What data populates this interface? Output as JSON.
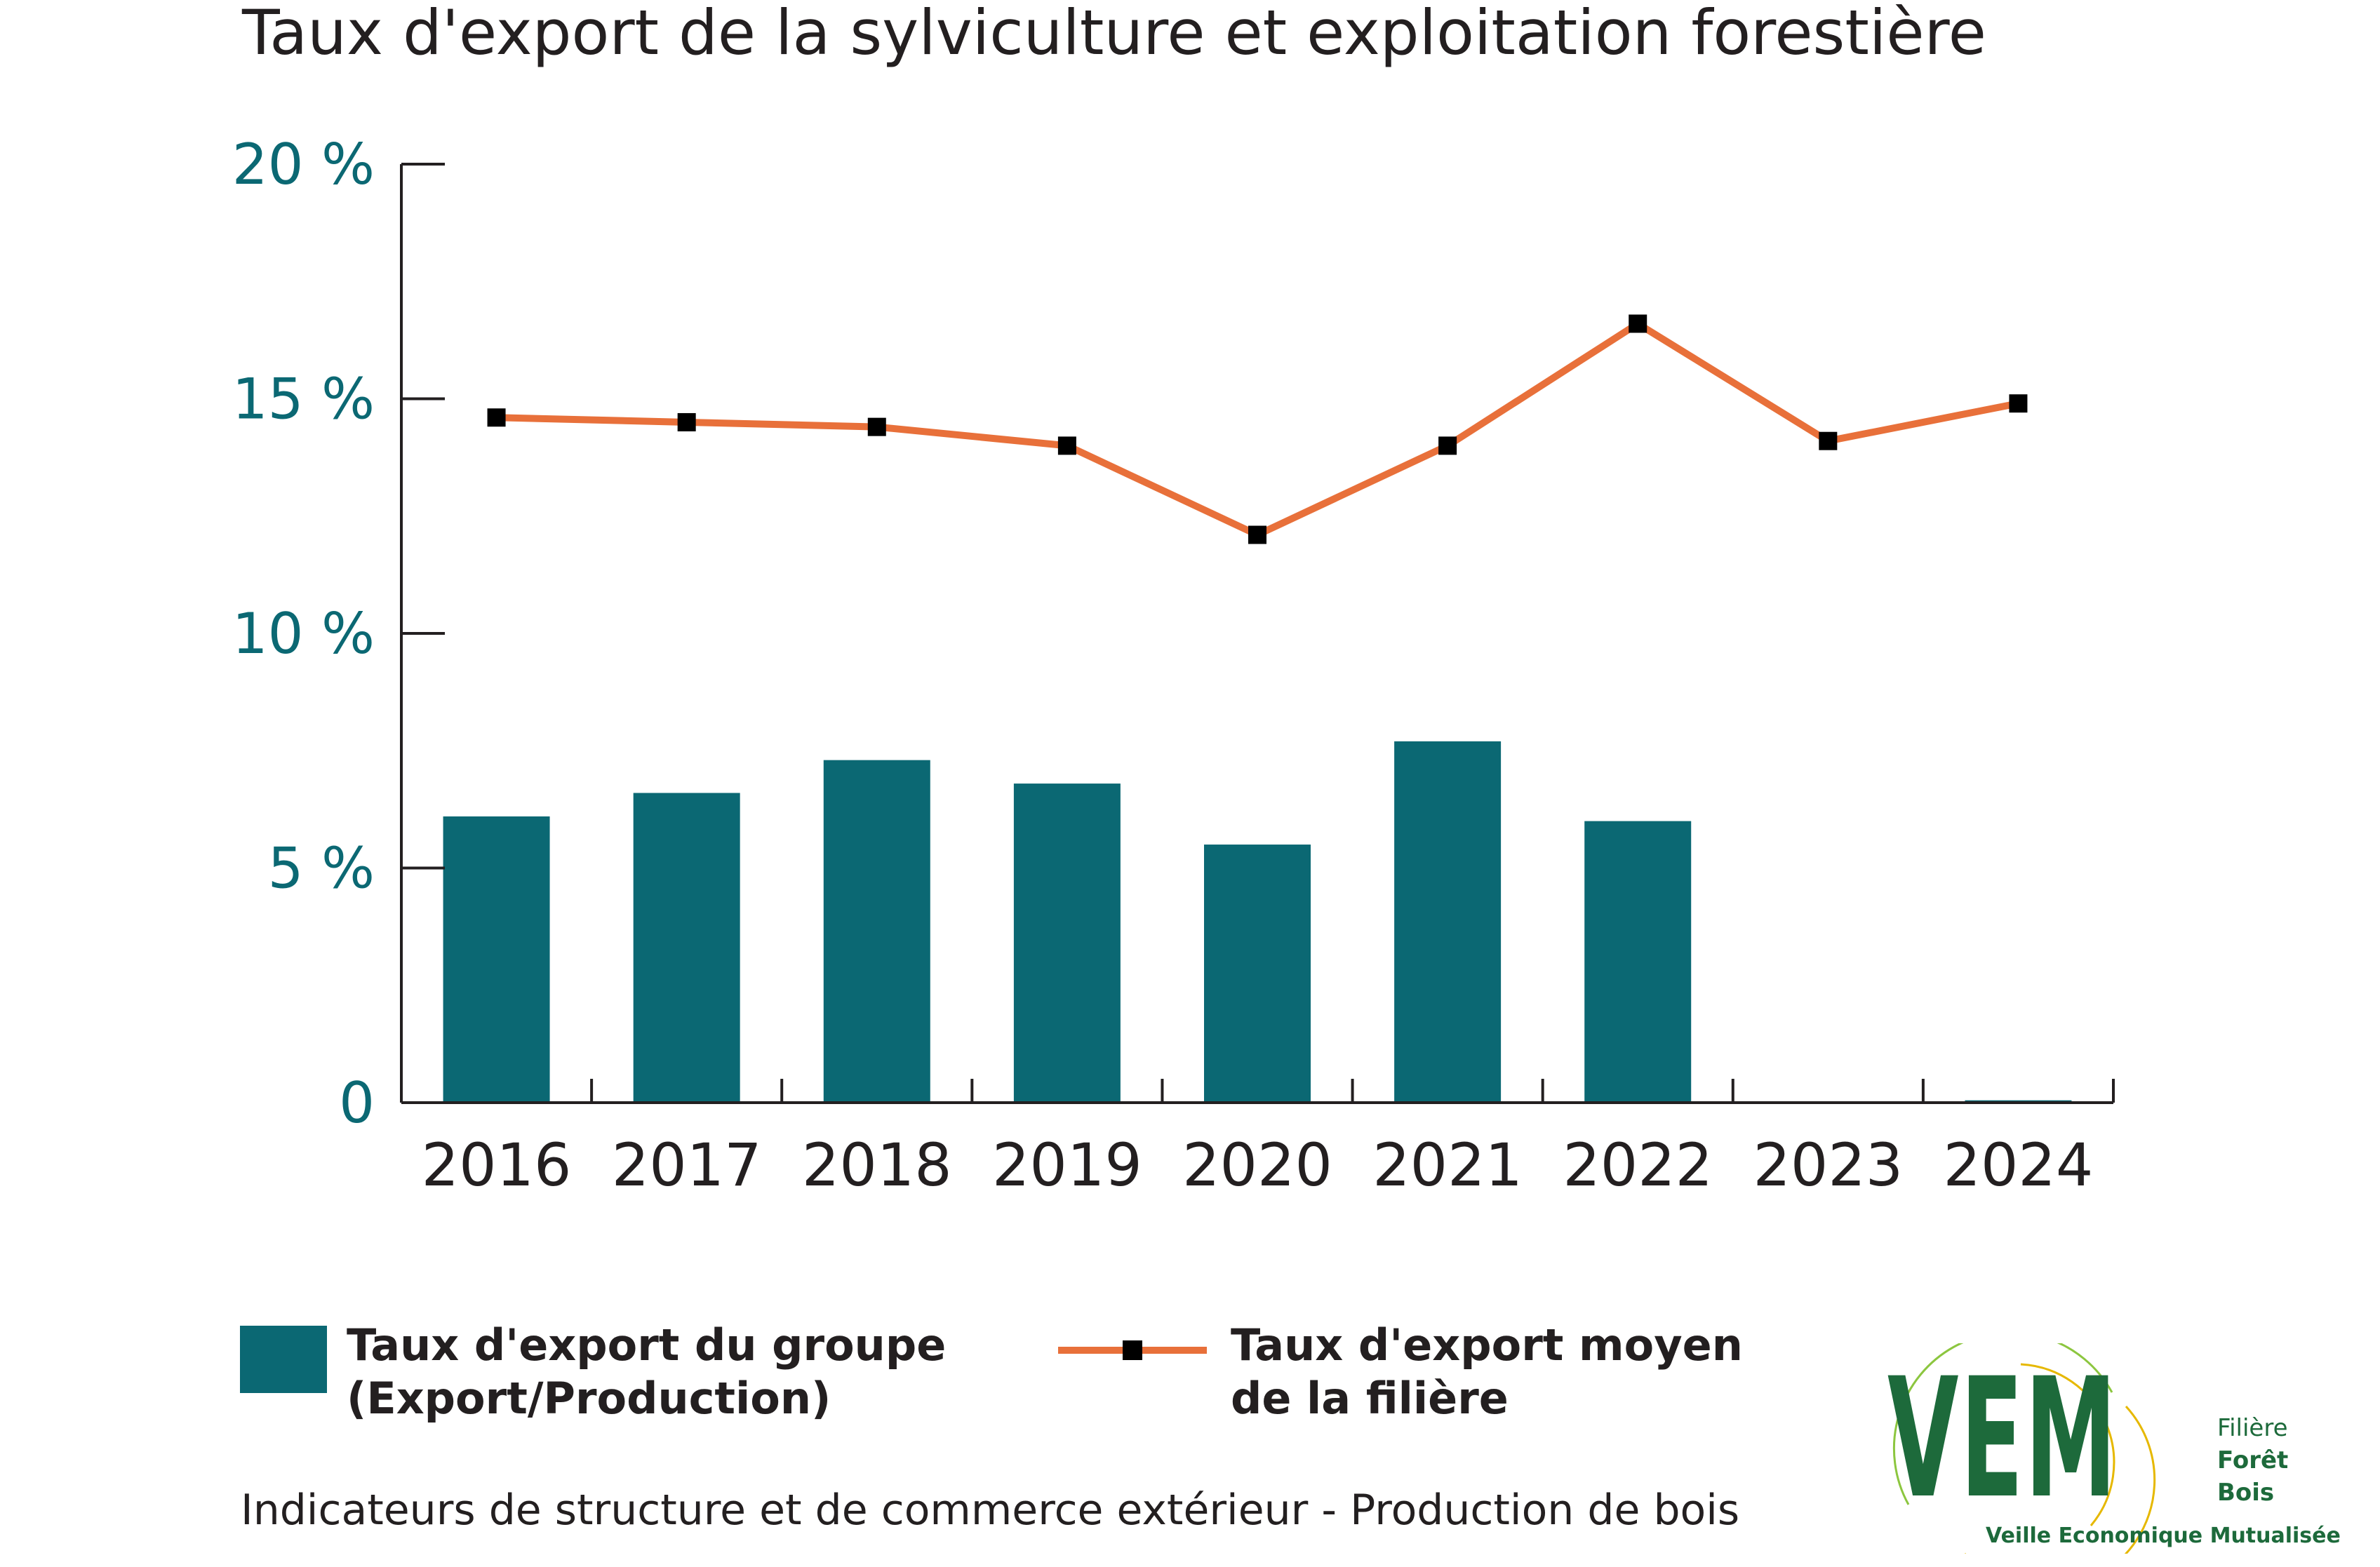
{
  "title": "Taux d'export de la sylviculture et exploitation forestière",
  "footer": "Indicateurs de structure et de commerce extérieur - Production de bois",
  "colors": {
    "bar": "#0b6873",
    "line": "#e8703a",
    "marker": "#000000",
    "axis": "#231f20",
    "ytick": "#0b6873",
    "logo": "#1d6a3b"
  },
  "legend": {
    "bar_label": "Taux d'export du groupe\n(Export/Production)",
    "line_label": "Taux d'export moyen\nde la filière"
  },
  "logo": {
    "letters": "VEM",
    "side_line1": "Filière",
    "side_line2": "Forêt",
    "side_line3": "Bois",
    "subtitle": "Veille Economique Mutualisée"
  },
  "chart_data": {
    "type": "bar",
    "categories": [
      "2016",
      "2017",
      "2018",
      "2019",
      "2020",
      "2021",
      "2022",
      "2023",
      "2024"
    ],
    "series": [
      {
        "name": "Taux d'export du groupe (Export/Production)",
        "type": "bar",
        "values": [
          6.1,
          6.6,
          7.3,
          6.8,
          5.5,
          7.7,
          6.0,
          0,
          0.05
        ]
      },
      {
        "name": "Taux d'export moyen de la filière",
        "type": "line",
        "values": [
          14.6,
          14.5,
          14.4,
          14.0,
          12.1,
          14.0,
          16.6,
          14.1,
          14.9
        ]
      }
    ],
    "yticks": [
      {
        "value": 0,
        "label": "0"
      },
      {
        "value": 5,
        "label": "5 %"
      },
      {
        "value": 10,
        "label": "10 %"
      },
      {
        "value": 15,
        "label": "15 %"
      },
      {
        "value": 20,
        "label": "20 %"
      }
    ],
    "ylim": [
      0,
      20
    ],
    "grid": false,
    "legend_position": "bottom"
  }
}
